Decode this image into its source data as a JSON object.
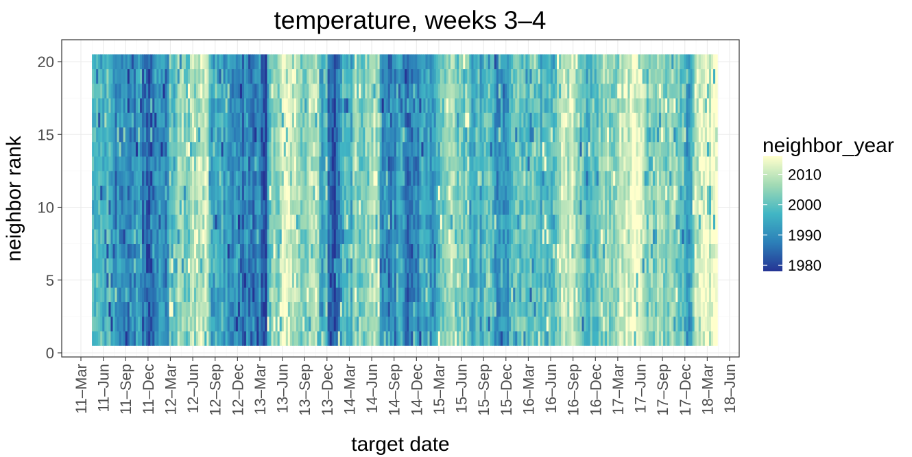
{
  "chart_data": {
    "type": "heatmap",
    "title": "temperature, weeks 3–4",
    "xlabel": "target date",
    "ylabel": "neighbor rank",
    "x_tick_labels": [
      "11–Mar",
      "11–Jun",
      "11–Sep",
      "11–Dec",
      "12–Mar",
      "12–Jun",
      "12–Sep",
      "12–Dec",
      "13–Mar",
      "13–Jun",
      "13–Sep",
      "13–Dec",
      "14–Mar",
      "14–Jun",
      "14–Sep",
      "14–Dec",
      "15–Mar",
      "15–Jun",
      "15–Sep",
      "15–Dec",
      "16–Mar",
      "16–Jun",
      "16–Sep",
      "16–Dec",
      "17–Mar",
      "17–Jun",
      "17–Sep",
      "17–Dec",
      "18–Mar",
      "18–Jun"
    ],
    "x_range": [
      "2011-03-01",
      "2018-06-01"
    ],
    "data_x_range": [
      "2011-04-15",
      "2018-04-12"
    ],
    "y_ticks": [
      0,
      5,
      10,
      15,
      20
    ],
    "y_range": [
      0,
      20.5
    ],
    "y_rows": [
      1,
      20
    ],
    "grid": true,
    "legend": {
      "title": "neighbor_year",
      "position": "right",
      "labels": [
        2010,
        2000,
        1990,
        1980
      ],
      "range": [
        1978,
        2016
      ],
      "colors": [
        "#253494",
        "#2c7fb8",
        "#41b6c4",
        "#a1dab4",
        "#ffffcc"
      ]
    },
    "period_mean_neighbor_year": [
      {
        "start": "2011-04-15",
        "mean": 1993
      },
      {
        "start": "2011-08-01",
        "mean": 1991
      },
      {
        "start": "2011-11-01",
        "mean": 1988
      },
      {
        "start": "2012-02-15",
        "mean": 2003
      },
      {
        "start": "2012-05-01",
        "mean": 2009
      },
      {
        "start": "2012-08-01",
        "mean": 1992
      },
      {
        "start": "2012-11-15",
        "mean": 1986
      },
      {
        "start": "2013-03-01",
        "mean": 1982
      },
      {
        "start": "2013-04-01",
        "mean": 2010
      },
      {
        "start": "2013-09-01",
        "mean": 2006
      },
      {
        "start": "2013-11-01",
        "mean": 1996
      },
      {
        "start": "2013-12-01",
        "mean": 1983
      },
      {
        "start": "2014-01-01",
        "mean": 1997
      },
      {
        "start": "2014-03-15",
        "mean": 2006
      },
      {
        "start": "2014-06-01",
        "mean": 2008
      },
      {
        "start": "2014-07-01",
        "mean": 1991
      },
      {
        "start": "2014-12-15",
        "mean": 1994
      },
      {
        "start": "2015-02-15",
        "mean": 2007
      },
      {
        "start": "2015-05-01",
        "mean": 2004
      },
      {
        "start": "2015-07-01",
        "mean": 1995
      },
      {
        "start": "2015-12-01",
        "mean": 1996
      },
      {
        "start": "2016-02-01",
        "mean": 1998
      },
      {
        "start": "2016-05-01",
        "mean": 2003
      },
      {
        "start": "2016-07-01",
        "mean": 2011
      },
      {
        "start": "2016-09-15",
        "mean": 1998
      },
      {
        "start": "2016-12-15",
        "mean": 2008
      },
      {
        "start": "2017-03-01",
        "mean": 2013
      },
      {
        "start": "2017-06-01",
        "mean": 2004
      },
      {
        "start": "2017-11-15",
        "mean": 1996
      },
      {
        "start": "2018-01-01",
        "mean": 2011
      }
    ]
  }
}
